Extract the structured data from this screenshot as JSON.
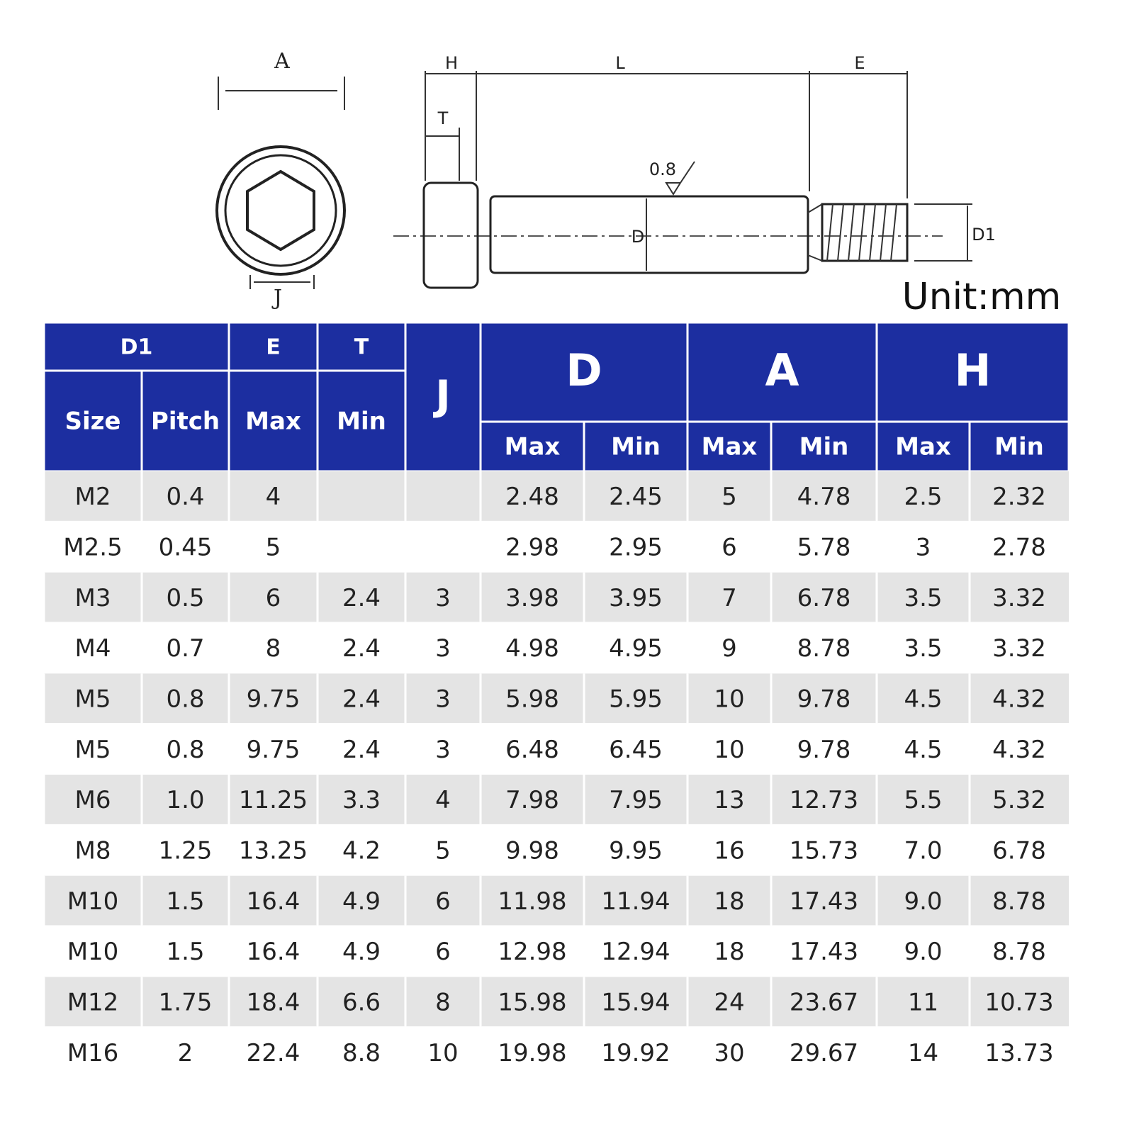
{
  "diagram": {
    "end_view": {
      "A": "A",
      "J": "J"
    },
    "side_view": {
      "H": "H",
      "L": "L",
      "E": "E",
      "T": "T",
      "roughness": "0.8",
      "D": "D",
      "D1": "D1"
    }
  },
  "unit": "Unit:mm",
  "table": {
    "groups": {
      "D1": "D1",
      "E": "E",
      "T": "T",
      "J": "J",
      "D": "D",
      "A": "A",
      "H": "H"
    },
    "sub": [
      "Size",
      "Pitch",
      "Max",
      "Min",
      "Max",
      "Min",
      "Max",
      "Min",
      "Max",
      "Min"
    ],
    "rows": [
      [
        "M2",
        "0.4",
        "4",
        null,
        null,
        "2.48",
        "2.45",
        "5",
        "4.78",
        "2.5",
        "2.32"
      ],
      [
        "M2.5",
        "0.45",
        "5",
        null,
        null,
        "2.98",
        "2.95",
        "6",
        "5.78",
        "3",
        "2.78"
      ],
      [
        "M3",
        "0.5",
        "6",
        "2.4",
        "3",
        "3.98",
        "3.95",
        "7",
        "6.78",
        "3.5",
        "3.32"
      ],
      [
        "M4",
        "0.7",
        "8",
        "2.4",
        "3",
        "4.98",
        "4.95",
        "9",
        "8.78",
        "3.5",
        "3.32"
      ],
      [
        "M5",
        "0.8",
        "9.75",
        "2.4",
        "3",
        "5.98",
        "5.95",
        "10",
        "9.78",
        "4.5",
        "4.32"
      ],
      [
        "M5",
        "0.8",
        "9.75",
        "2.4",
        "3",
        "6.48",
        "6.45",
        "10",
        "9.78",
        "4.5",
        "4.32"
      ],
      [
        "M6",
        "1.0",
        "11.25",
        "3.3",
        "4",
        "7.98",
        "7.95",
        "13",
        "12.73",
        "5.5",
        "5.32"
      ],
      [
        "M8",
        "1.25",
        "13.25",
        "4.2",
        "5",
        "9.98",
        "9.95",
        "16",
        "15.73",
        "7.0",
        "6.78"
      ],
      [
        "M10",
        "1.5",
        "16.4",
        "4.9",
        "6",
        "11.98",
        "11.94",
        "18",
        "17.43",
        "9.0",
        "8.78"
      ],
      [
        "M10",
        "1.5",
        "16.4",
        "4.9",
        "6",
        "12.98",
        "12.94",
        "18",
        "17.43",
        "9.0",
        "8.78"
      ],
      [
        "M12",
        "1.75",
        "18.4",
        "6.6",
        "8",
        "15.98",
        "15.94",
        "24",
        "23.67",
        "11",
        "10.73"
      ],
      [
        "M16",
        "2",
        "22.4",
        "8.8",
        "10",
        "19.98",
        "19.92",
        "30",
        "29.67",
        "14",
        "13.73"
      ]
    ]
  }
}
